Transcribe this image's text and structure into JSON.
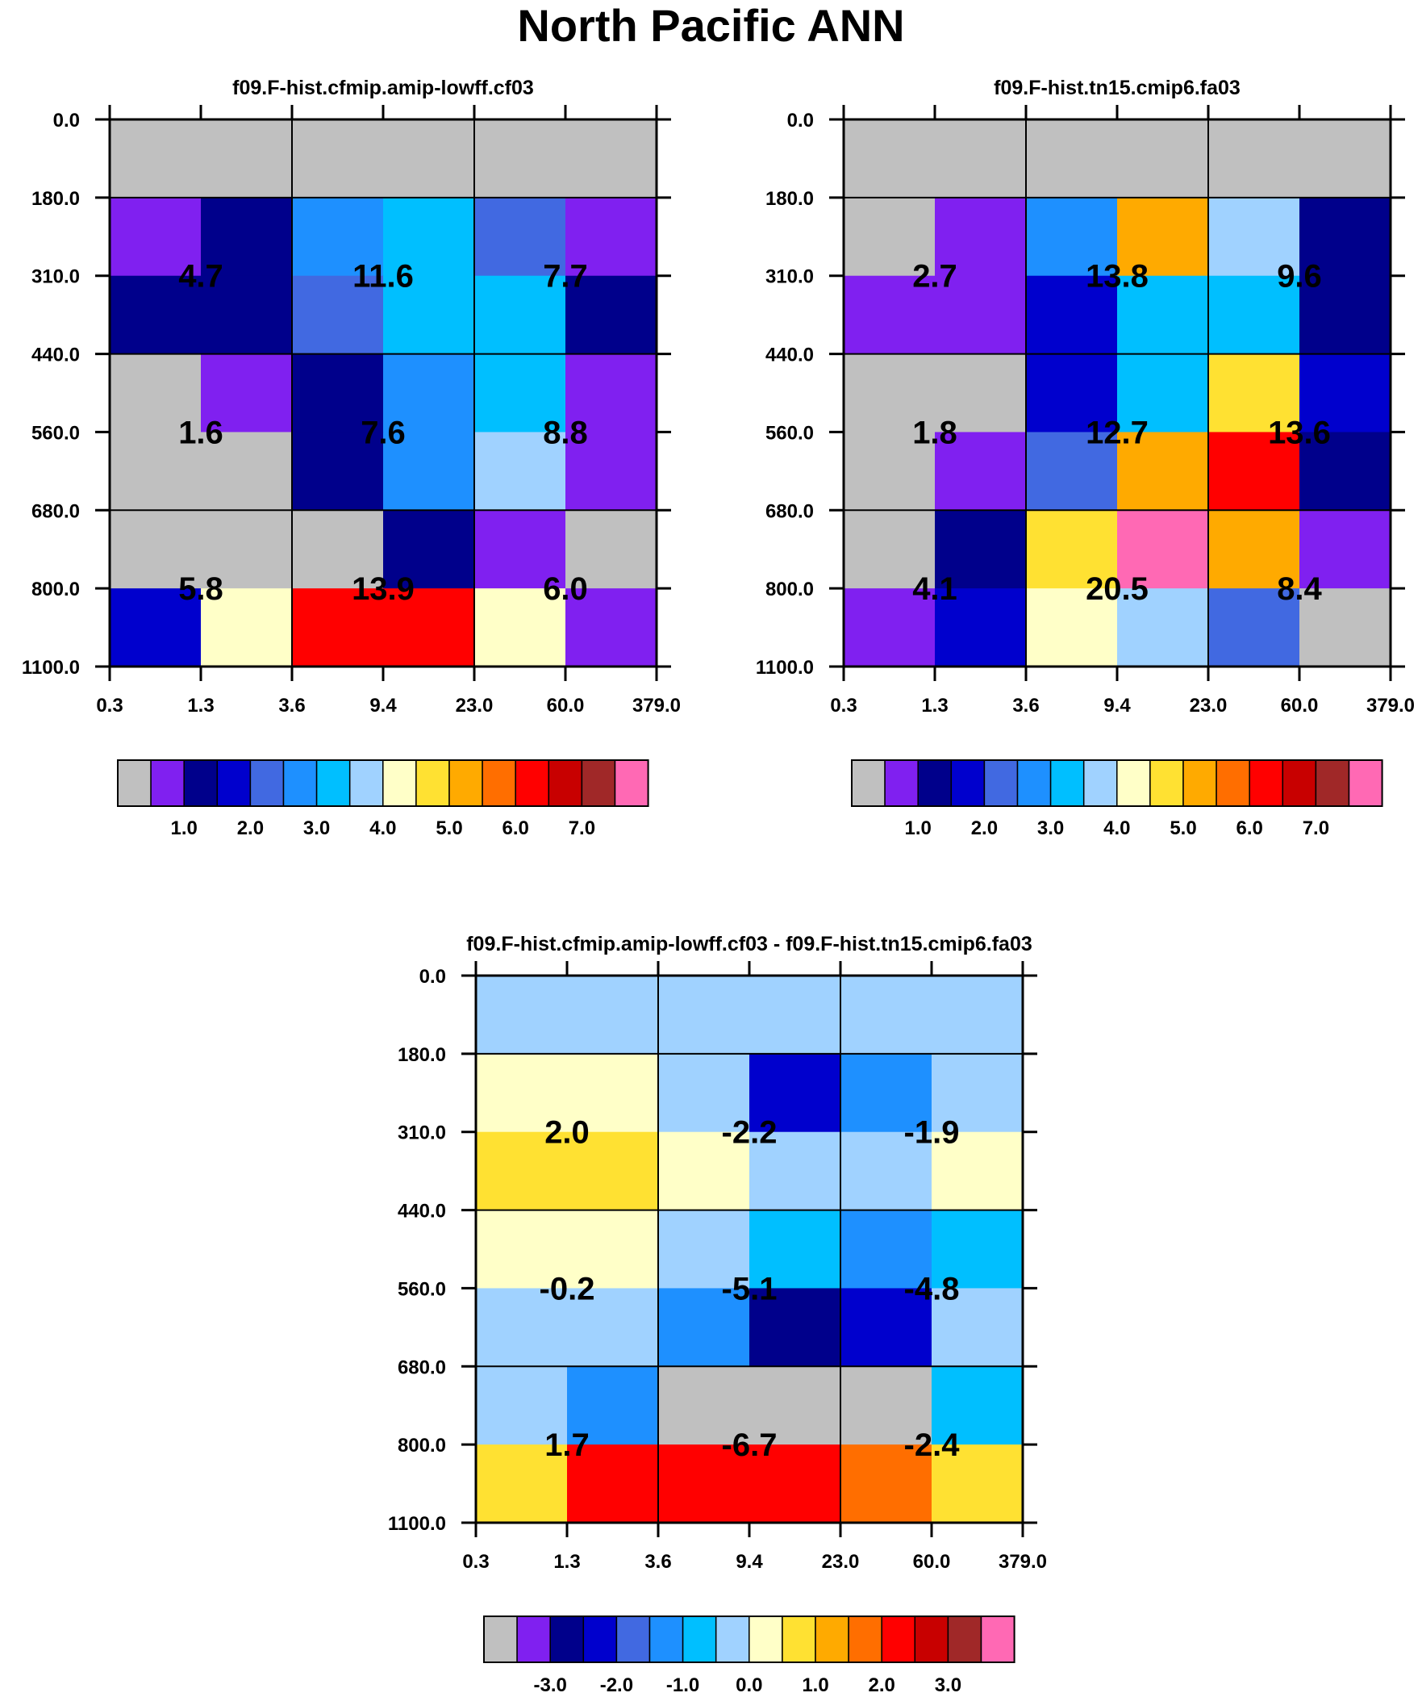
{
  "page_title": "North Pacific ANN",
  "colors": {
    "palette": [
      "#c0c0c0",
      "#8020f0",
      "#00008b",
      "#0000cd",
      "#4169e1",
      "#1e90ff",
      "#00bfff",
      "#a0d2ff",
      "#ffffc8",
      "#ffe132",
      "#ffaa00",
      "#ff6e00",
      "#ff0000",
      "#c80000",
      "#a02828",
      "#ff69b4"
    ],
    "grid_line": "#000000",
    "text": "#000000"
  },
  "chart_data": [
    {
      "type": "heatmap",
      "title": "f09.F-hist.cfmip.amip-lowff.cf03",
      "x_tick_labels": [
        "0.3",
        "1.3",
        "3.6",
        "9.4",
        "23.0",
        "60.0",
        "379.0"
      ],
      "y_tick_labels": [
        "0.0",
        "180.0",
        "310.0",
        "440.0",
        "560.0",
        "680.0",
        "800.0",
        "1100.0"
      ],
      "cell_colors": [
        [
          0,
          0,
          0,
          0,
          0,
          0
        ],
        [
          1,
          2,
          5,
          6,
          4,
          1
        ],
        [
          2,
          2,
          4,
          6,
          6,
          2
        ],
        [
          0,
          1,
          2,
          5,
          6,
          1
        ],
        [
          0,
          0,
          2,
          5,
          7,
          1
        ],
        [
          0,
          0,
          0,
          2,
          1,
          0
        ],
        [
          3,
          8,
          12,
          12,
          8,
          1
        ]
      ],
      "block_values": [
        [
          "4.7",
          "11.6",
          "7.7"
        ],
        [
          "1.6",
          "7.6",
          "8.8"
        ],
        [
          "5.8",
          "13.9",
          "6.0"
        ]
      ],
      "colorbar_labels": [
        "1.0",
        "2.0",
        "3.0",
        "4.0",
        "5.0",
        "6.0",
        "7.0"
      ]
    },
    {
      "type": "heatmap",
      "title": "f09.F-hist.tn15.cmip6.fa03",
      "x_tick_labels": [
        "0.3",
        "1.3",
        "3.6",
        "9.4",
        "23.0",
        "60.0",
        "379.0"
      ],
      "y_tick_labels": [
        "0.0",
        "180.0",
        "310.0",
        "440.0",
        "560.0",
        "680.0",
        "800.0",
        "1100.0"
      ],
      "cell_colors": [
        [
          0,
          0,
          0,
          0,
          0,
          0
        ],
        [
          0,
          1,
          5,
          10,
          7,
          2
        ],
        [
          1,
          1,
          3,
          6,
          6,
          2
        ],
        [
          0,
          0,
          3,
          6,
          9,
          3
        ],
        [
          0,
          1,
          4,
          10,
          12,
          2
        ],
        [
          0,
          2,
          9,
          15,
          10,
          1
        ],
        [
          1,
          3,
          8,
          7,
          4,
          0
        ]
      ],
      "block_values": [
        [
          "2.7",
          "13.8",
          "9.6"
        ],
        [
          "1.8",
          "12.7",
          "13.6"
        ],
        [
          "4.1",
          "20.5",
          "8.4"
        ]
      ],
      "colorbar_labels": [
        "1.0",
        "2.0",
        "3.0",
        "4.0",
        "5.0",
        "6.0",
        "7.0"
      ]
    },
    {
      "type": "heatmap",
      "title": "f09.F-hist.cfmip.amip-lowff.cf03 - f09.F-hist.tn15.cmip6.fa03",
      "x_tick_labels": [
        "0.3",
        "1.3",
        "3.6",
        "9.4",
        "23.0",
        "60.0",
        "379.0"
      ],
      "y_tick_labels": [
        "0.0",
        "180.0",
        "310.0",
        "440.0",
        "560.0",
        "680.0",
        "800.0",
        "1100.0"
      ],
      "cell_colors": [
        [
          7,
          7,
          7,
          7,
          7,
          7
        ],
        [
          8,
          8,
          7,
          3,
          5,
          7
        ],
        [
          9,
          9,
          8,
          7,
          7,
          8
        ],
        [
          8,
          8,
          7,
          6,
          5,
          6
        ],
        [
          7,
          7,
          5,
          2,
          3,
          7
        ],
        [
          7,
          5,
          0,
          0,
          0,
          6
        ],
        [
          9,
          12,
          12,
          12,
          11,
          9
        ]
      ],
      "block_values": [
        [
          "2.0",
          "-2.2",
          "-1.9"
        ],
        [
          "-0.2",
          "-5.1",
          "-4.8"
        ],
        [
          "1.7",
          "-6.7",
          "-2.4"
        ]
      ],
      "colorbar_labels": [
        "-3.0",
        "-2.0",
        "-1.0",
        "0.0",
        "1.0",
        "2.0",
        "3.0"
      ]
    }
  ]
}
